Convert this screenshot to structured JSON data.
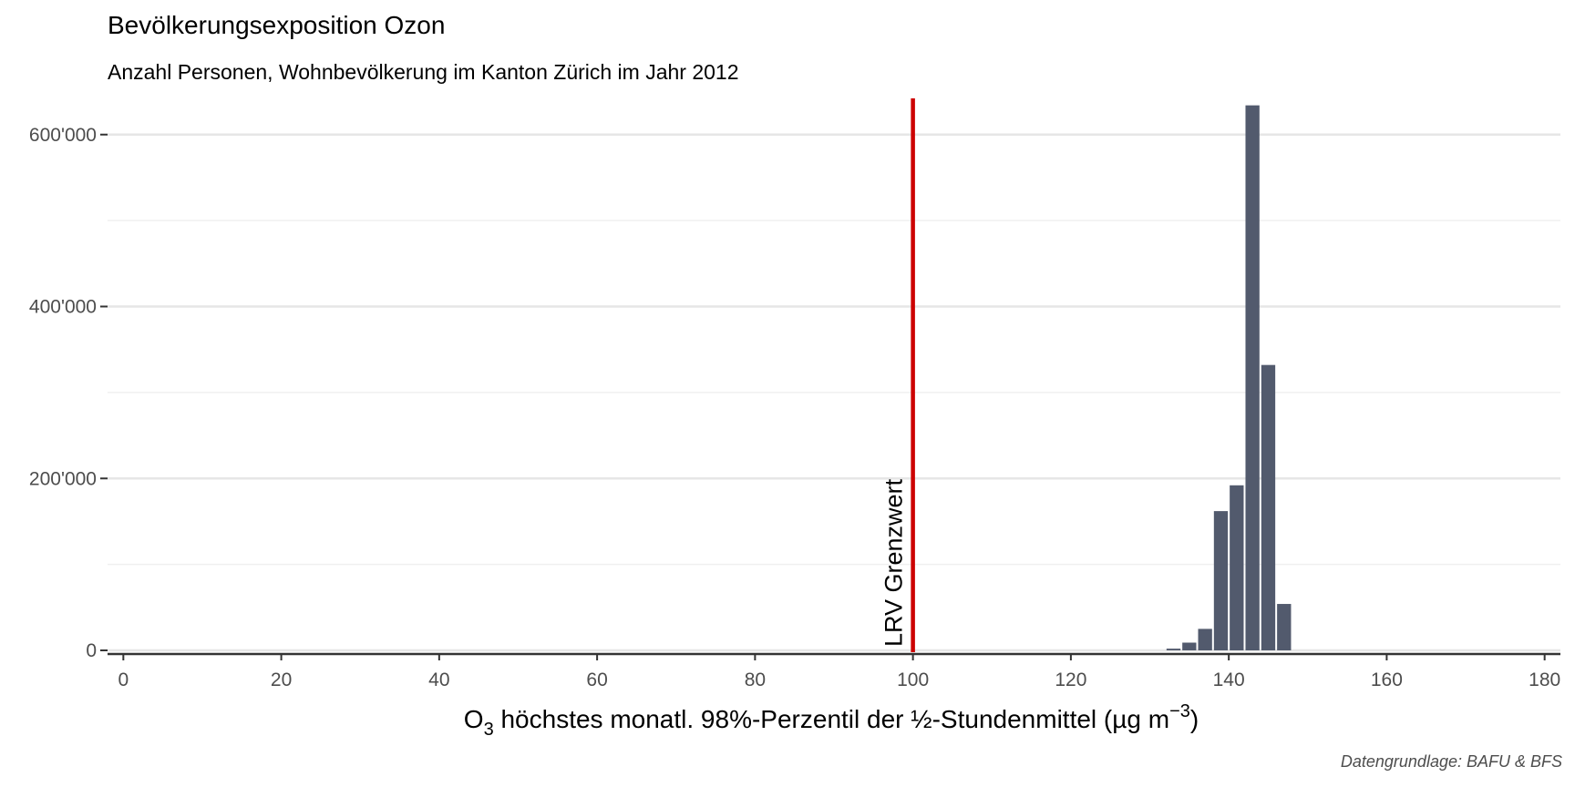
{
  "chart_data": {
    "type": "bar",
    "title": "Bevölkerungsexposition Ozon",
    "subtitle": "Anzahl Personen, Wohnbevölkerung im Kanton Zürich im Jahr 2012",
    "xlabel_main": "O",
    "xlabel_sub": "3",
    "xlabel_rest": " höchstes monatl. 98%-Perzentil der ½-Stundenmittel (µg m",
    "xlabel_sup": "−3",
    "xlabel_end": ")",
    "caption": "Datengrundlage: BAFU & BFS",
    "xlim": [
      -2,
      182
    ],
    "ylim": [
      0,
      640000
    ],
    "x_ticks": [
      0,
      20,
      40,
      60,
      80,
      100,
      120,
      140,
      160,
      180
    ],
    "x_tick_labels": [
      "0",
      "20",
      "40",
      "60",
      "80",
      "100",
      "120",
      "140",
      "160",
      "180"
    ],
    "y_ticks": [
      0,
      200000,
      400000,
      600000
    ],
    "y_tick_labels": [
      "0",
      "200'000",
      "400'000",
      "600'000"
    ],
    "y_minor_ticks": [
      100000,
      300000,
      500000
    ],
    "grid": true,
    "bin_width": 2,
    "bars": [
      {
        "x": 133,
        "value": 2000
      },
      {
        "x": 135,
        "value": 9000
      },
      {
        "x": 137,
        "value": 25000
      },
      {
        "x": 139,
        "value": 162000
      },
      {
        "x": 141,
        "value": 192000
      },
      {
        "x": 143,
        "value": 634000
      },
      {
        "x": 145,
        "value": 332000
      },
      {
        "x": 147,
        "value": 54000
      }
    ],
    "bar_color": "#525a6d",
    "reference_line": {
      "x": 100,
      "label": "LRV Grenzwert",
      "color": "#cc0000"
    }
  }
}
